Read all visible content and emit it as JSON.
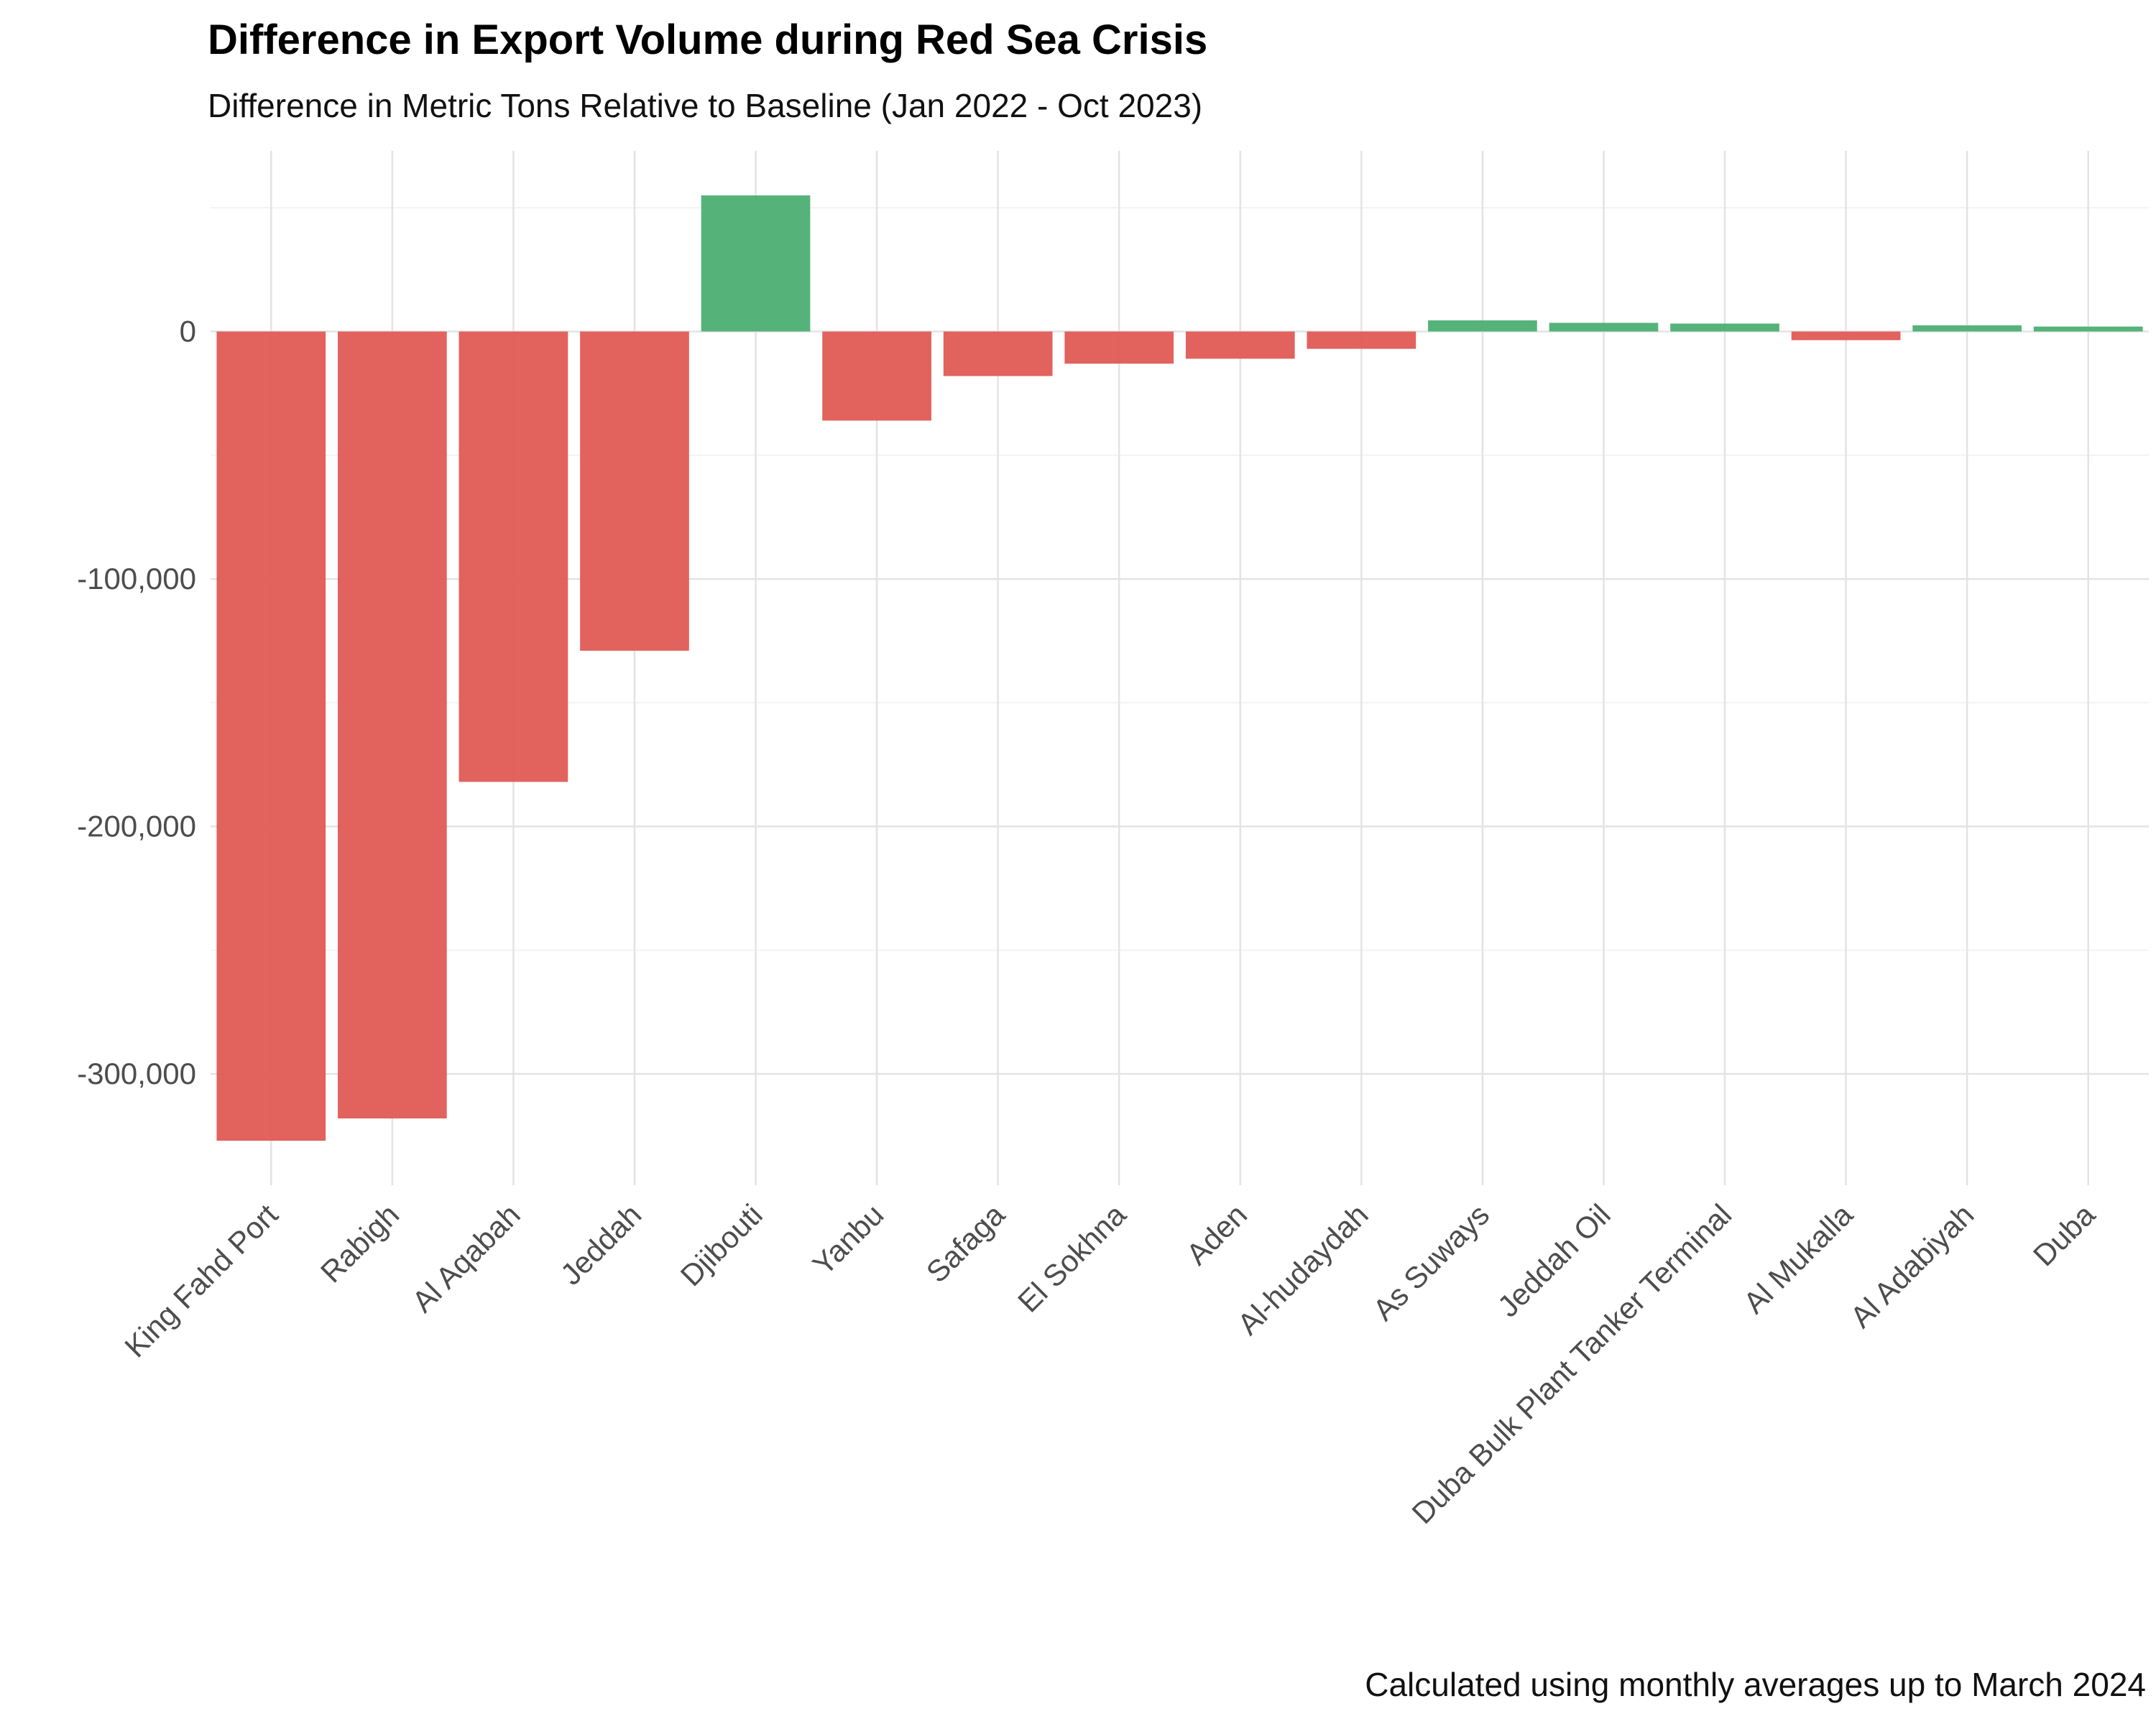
{
  "chart_data": {
    "type": "bar",
    "title": "Difference in Export Volume during Red Sea Crisis",
    "subtitle": "Difference in Metric Tons Relative to Baseline (Jan 2022 - Oct 2023)",
    "caption": "Calculated using monthly averages up to March 2024",
    "xlabel": "",
    "ylabel": "",
    "categories": [
      "King Fahd Port",
      "Rabigh",
      "Al Aqabah",
      "Jeddah",
      "Djibouti",
      "Yanbu",
      "Safaga",
      "El Sokhna",
      "Aden",
      "Al-hudaydah",
      "As Suways",
      "Jeddah Oil",
      "Duba Bulk Plant Tanker Terminal",
      "Al Mukalla",
      "Al Adabiyah",
      "Duba"
    ],
    "values": [
      -327000,
      -318000,
      -182000,
      -129000,
      55000,
      -36000,
      -18000,
      -13000,
      -11000,
      -7000,
      4500,
      3500,
      3200,
      -3500,
      2500,
      2000
    ],
    "ylim": [
      -345000,
      73000
    ],
    "yticks": [
      0,
      -100000,
      -200000,
      -300000
    ],
    "ytick_labels": [
      "0",
      "-100,000",
      "-200,000",
      "-300,000"
    ],
    "grid": true,
    "legend": "none",
    "colors": {
      "positive": "#4caf73",
      "negative": "#e05a54",
      "grid_major": "#e3e3e3",
      "grid_minor": "#f3f3f3",
      "tick_text": "#4d4d4d"
    }
  }
}
